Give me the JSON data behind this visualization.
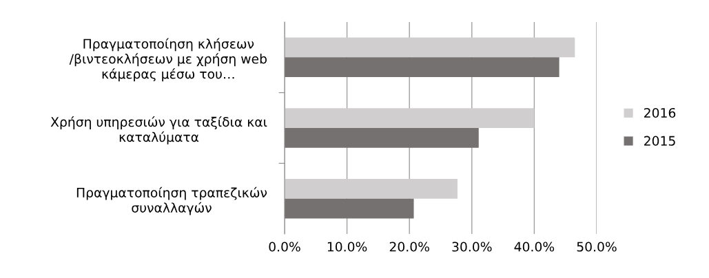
{
  "chart_data": {
    "type": "bar",
    "orientation": "horizontal",
    "categories": [
      "Πραγματοποίηση κλήσεων\n/βιντεοκλήσεων με χρήση web\nκάμερας μέσω του…",
      "Χρήση υπηρεσιών για ταξίδια και\nκαταλύματα",
      "Πραγματοποίηση τραπεζικών\nσυναλλαγών"
    ],
    "series": [
      {
        "name": "2016",
        "color": "#d0cece",
        "values": [
          46.5,
          40.0,
          27.7
        ]
      },
      {
        "name": "2015",
        "color": "#767171",
        "values": [
          44.0,
          31.1,
          20.7
        ]
      }
    ],
    "xlim": [
      0,
      50
    ],
    "xticks": [
      {
        "value": 0,
        "label": "0.0%"
      },
      {
        "value": 10,
        "label": "10.0%"
      },
      {
        "value": 20,
        "label": "20.0%"
      },
      {
        "value": 30,
        "label": "30.0%"
      },
      {
        "value": 40,
        "label": "40.0%"
      },
      {
        "value": 50,
        "label": "50.0%"
      }
    ],
    "grid": "x",
    "legend": "right"
  }
}
